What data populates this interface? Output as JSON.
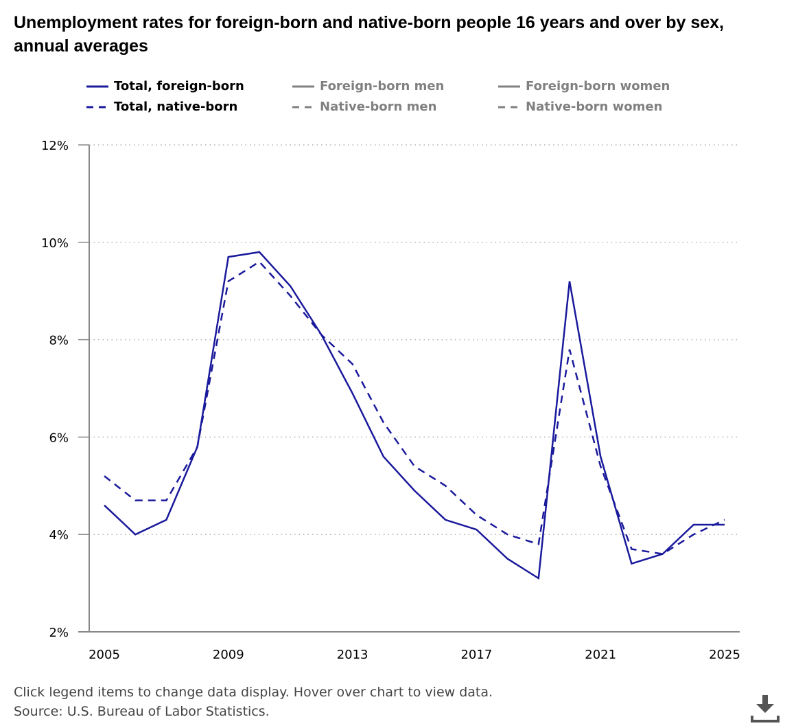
{
  "chart_title": "Unemployment rates for foreign-born and native-born people 16 years and over by sex, annual averages",
  "legend": {
    "items": [
      {
        "label": "Total, foreign-born",
        "style": "solid",
        "active": true,
        "color": "#1a1a9c"
      },
      {
        "label": "Foreign-born men",
        "style": "solid",
        "active": false,
        "color": "#808080"
      },
      {
        "label": "Foreign-born women",
        "style": "solid",
        "active": false,
        "color": "#808080"
      },
      {
        "label": "Total, native-born",
        "style": "dashed",
        "active": true,
        "color": "#1a1a9c"
      },
      {
        "label": "Native-born men",
        "style": "dashed",
        "active": false,
        "color": "#808080"
      },
      {
        "label": "Native-born women",
        "style": "dashed",
        "active": false,
        "color": "#808080"
      }
    ]
  },
  "footnote": {
    "instructions": "Click legend items to change data display. Hover over chart to view data.",
    "source": "Source: U.S. Bureau of Labor Statistics."
  },
  "download": {
    "icon": "download-icon"
  },
  "colors": {
    "series": "#1a1a9c",
    "inactive": "#808080",
    "grid": "#b0b0b0",
    "axis": "#888888"
  },
  "chart_data": {
    "type": "line",
    "title": "Unemployment rates for foreign-born and native-born people 16 years and over by sex, annual averages",
    "xlabel": "",
    "ylabel": "",
    "x": [
      2005,
      2006,
      2007,
      2008,
      2009,
      2010,
      2011,
      2012,
      2013,
      2014,
      2015,
      2016,
      2017,
      2018,
      2019,
      2020,
      2021,
      2022,
      2023,
      2024,
      2025
    ],
    "x_ticks": [
      "2005",
      "2009",
      "2013",
      "2017",
      "2021",
      "2025"
    ],
    "y_ticks": [
      "2%",
      "4%",
      "6%",
      "8%",
      "10%",
      "12%"
    ],
    "ylim": [
      2,
      12
    ],
    "grid": true,
    "legend_position": "top",
    "series": [
      {
        "name": "Total, foreign-born",
        "style": "solid",
        "values": [
          4.6,
          4.0,
          4.3,
          5.8,
          9.7,
          9.8,
          9.1,
          8.1,
          6.9,
          5.6,
          4.9,
          4.3,
          4.1,
          3.5,
          3.1,
          9.2,
          5.6,
          3.4,
          3.6,
          4.2,
          4.2
        ]
      },
      {
        "name": "Total, native-born",
        "style": "dashed",
        "values": [
          5.2,
          4.7,
          4.7,
          5.8,
          9.2,
          9.6,
          8.9,
          8.1,
          7.5,
          6.3,
          5.4,
          5.0,
          4.4,
          4.0,
          3.8,
          7.8,
          5.4,
          3.7,
          3.6,
          4.0,
          4.3
        ]
      }
    ]
  }
}
